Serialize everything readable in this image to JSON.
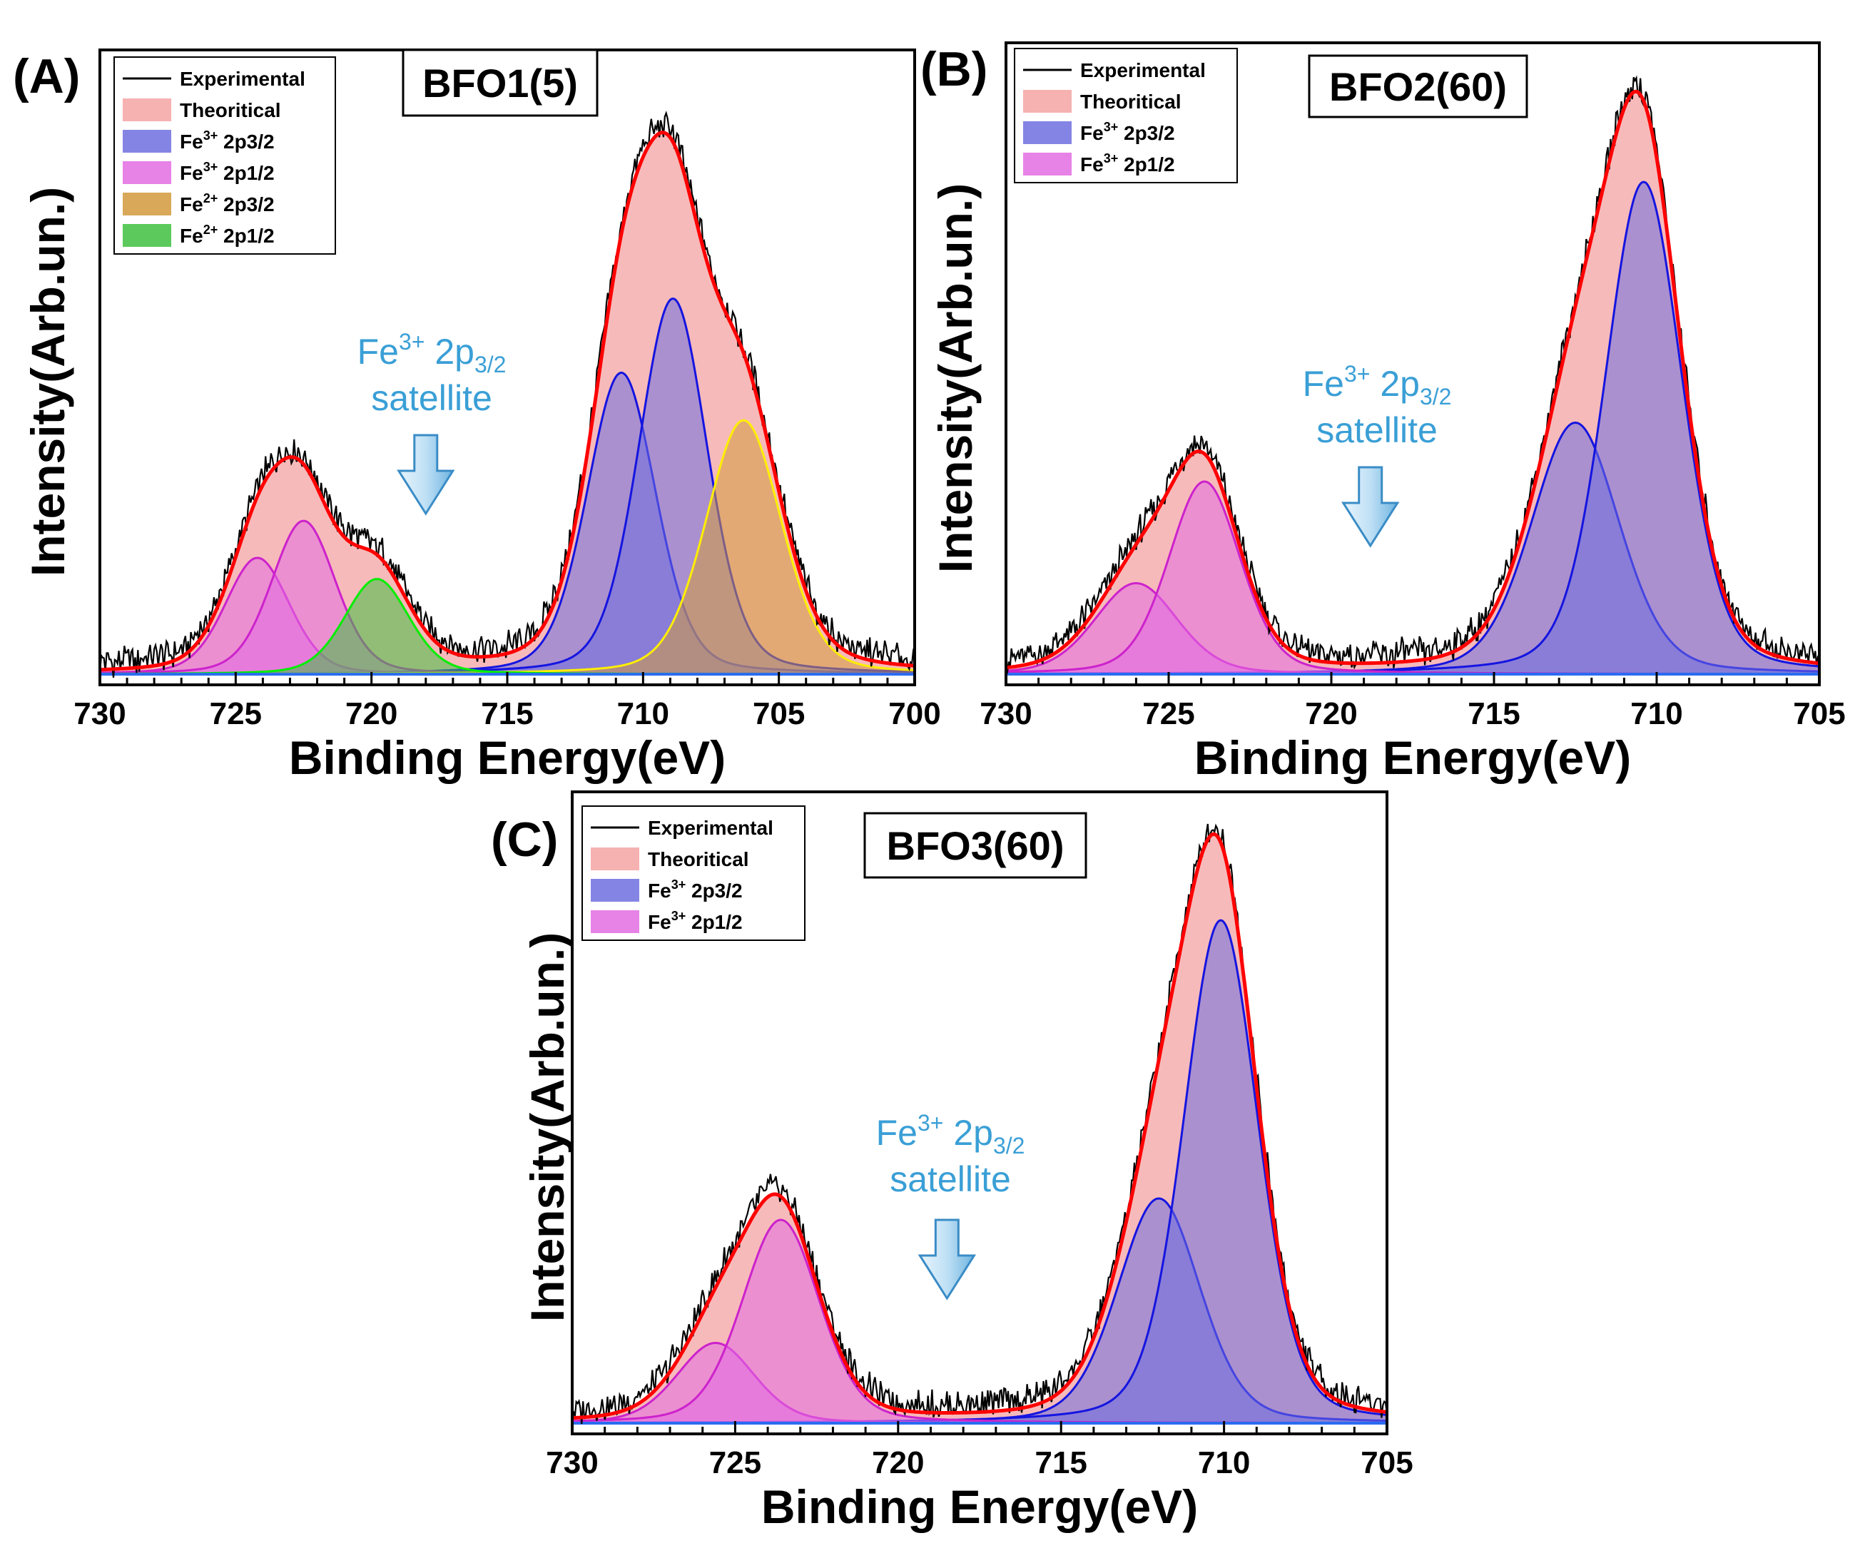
{
  "chart_data": [
    {
      "type": "area",
      "panel": "(A)",
      "sample": "BFO1(5)",
      "xlabel": "Binding Energy(eV)",
      "ylabel": "Intensity(Arb.un.)",
      "xlim": [
        730,
        700
      ],
      "xticks": [
        730,
        725,
        720,
        715,
        710,
        705,
        700
      ],
      "ylim": [
        0,
        1.2
      ],
      "legend_position": "top-left",
      "legend": [
        {
          "label": "Experimental",
          "sup": "",
          "sub": "",
          "key": "exp"
        },
        {
          "label": "Theoritical",
          "sup": "",
          "sub": "",
          "key": "theo"
        },
        {
          "label": "Fe",
          "sup": "3+",
          "sub": " 2p3/2",
          "key": "fe3_32"
        },
        {
          "label": "Fe",
          "sup": "3+",
          "sub": " 2p1/2",
          "key": "fe3_12"
        },
        {
          "label": "Fe",
          "sup": "2+",
          "sub": " 2p3/2",
          "key": "fe2_32"
        },
        {
          "label": "Fe",
          "sup": "2+",
          "sub": " 2p1/2",
          "key": "fe2_12"
        }
      ],
      "annotation": {
        "line1_base": "Fe",
        "line1_sup": "3+",
        "line1_mid": " 2p",
        "line1_sub": "3/2",
        "line2": "satellite",
        "arrow_at": 718.0
      },
      "baseline": 0.02,
      "series": [
        {
          "name": "Fe3+ 2p3/2",
          "key": "fe3_32",
          "peaks": [
            {
              "center": 710.8,
              "fwhm": 3.0,
              "height": 0.57
            },
            {
              "center": 708.9,
              "fwhm": 3.0,
              "height": 0.71
            }
          ]
        },
        {
          "name": "Fe3+ 2p1/2",
          "key": "fe3_12",
          "peaks": [
            {
              "center": 724.2,
              "fwhm": 2.8,
              "height": 0.22
            },
            {
              "center": 722.5,
              "fwhm": 2.8,
              "height": 0.29
            }
          ]
        },
        {
          "name": "Fe2+ 2p3/2",
          "key": "fe2_32",
          "peaks": [
            {
              "center": 706.3,
              "fwhm": 3.3,
              "height": 0.48
            }
          ]
        },
        {
          "name": "Fe2+ 2p1/2",
          "key": "fe2_12",
          "peaks": [
            {
              "center": 719.8,
              "fwhm": 2.8,
              "height": 0.18
            }
          ]
        }
      ]
    },
    {
      "type": "area",
      "panel": "(B)",
      "sample": "BFO2(60)",
      "xlabel": "Binding Energy(eV)",
      "ylabel": "Intensity(Arb.un.)",
      "xlim": [
        730,
        705
      ],
      "xticks": [
        730,
        725,
        720,
        715,
        710,
        705
      ],
      "ylim": [
        0,
        1.2
      ],
      "legend_position": "top-left",
      "legend": [
        {
          "label": "Experimental",
          "sup": "",
          "sub": "",
          "key": "exp"
        },
        {
          "label": "Theoritical",
          "sup": "",
          "sub": "",
          "key": "theo"
        },
        {
          "label": "Fe",
          "sup": "3+",
          "sub": " 2p3/2",
          "key": "fe3_32"
        },
        {
          "label": "Fe",
          "sup": "3+",
          "sub": " 2p1/2",
          "key": "fe3_12"
        }
      ],
      "annotation": {
        "line1_base": "Fe",
        "line1_sup": "3+",
        "line1_mid": " 2p",
        "line1_sub": "3/2",
        "line2": "satellite",
        "arrow_at": 718.8
      },
      "baseline": 0.02,
      "series": [
        {
          "name": "Fe3+ 2p3/2",
          "key": "fe3_32",
          "peaks": [
            {
              "center": 712.5,
              "fwhm": 3.2,
              "height": 0.47
            },
            {
              "center": 710.4,
              "fwhm": 2.8,
              "height": 0.92
            }
          ]
        },
        {
          "name": "Fe3+ 2p1/2",
          "key": "fe3_12",
          "peaks": [
            {
              "center": 726.0,
              "fwhm": 3.0,
              "height": 0.17
            },
            {
              "center": 723.9,
              "fwhm": 2.6,
              "height": 0.36
            }
          ]
        }
      ]
    },
    {
      "type": "area",
      "panel": "(C)",
      "sample": "BFO3(60)",
      "xlabel": "Binding Energy(eV)",
      "ylabel": "Intensity(Arb.un.)",
      "xlim": [
        730,
        705
      ],
      "xticks": [
        730,
        725,
        720,
        715,
        710,
        705
      ],
      "ylim": [
        0,
        1.2
      ],
      "legend_position": "top-left",
      "legend": [
        {
          "label": "Experimental",
          "sup": "",
          "sub": "",
          "key": "exp"
        },
        {
          "label": "Theoritical",
          "sup": "",
          "sub": "",
          "key": "theo"
        },
        {
          "label": "Fe",
          "sup": "3+",
          "sub": " 2p3/2",
          "key": "fe3_32"
        },
        {
          "label": "Fe",
          "sup": "3+",
          "sub": " 2p1/2",
          "key": "fe3_12"
        }
      ],
      "annotation": {
        "line1_base": "Fe",
        "line1_sup": "3+",
        "line1_mid": " 2p",
        "line1_sub": "3/2",
        "line2": "satellite",
        "arrow_at": 718.5
      },
      "baseline": 0.02,
      "series": [
        {
          "name": "Fe3+ 2p3/2",
          "key": "fe3_32",
          "peaks": [
            {
              "center": 712.0,
              "fwhm": 3.0,
              "height": 0.42
            },
            {
              "center": 710.1,
              "fwhm": 2.7,
              "height": 0.94
            }
          ]
        },
        {
          "name": "Fe3+ 2p1/2",
          "key": "fe3_12",
          "peaks": [
            {
              "center": 725.6,
              "fwhm": 2.8,
              "height": 0.15
            },
            {
              "center": 723.6,
              "fwhm": 2.8,
              "height": 0.38
            }
          ]
        }
      ]
    }
  ],
  "colors": {
    "exp": "#000000",
    "theo_fill": "#f4a3a3",
    "theo_line": "#ff0000",
    "fe3_32_fill": "#6e6ee0",
    "fe3_32_line": "#1515e0",
    "fe3_12_fill": "#e36ce3",
    "fe3_12_line": "#cc22cc",
    "fe2_32_fill": "#d29a3c",
    "fe2_32_line": "#ffee00",
    "fe2_12_fill": "#3fc03f",
    "fe2_12_line": "#00ee00",
    "annotation": "#3a9fd6"
  }
}
